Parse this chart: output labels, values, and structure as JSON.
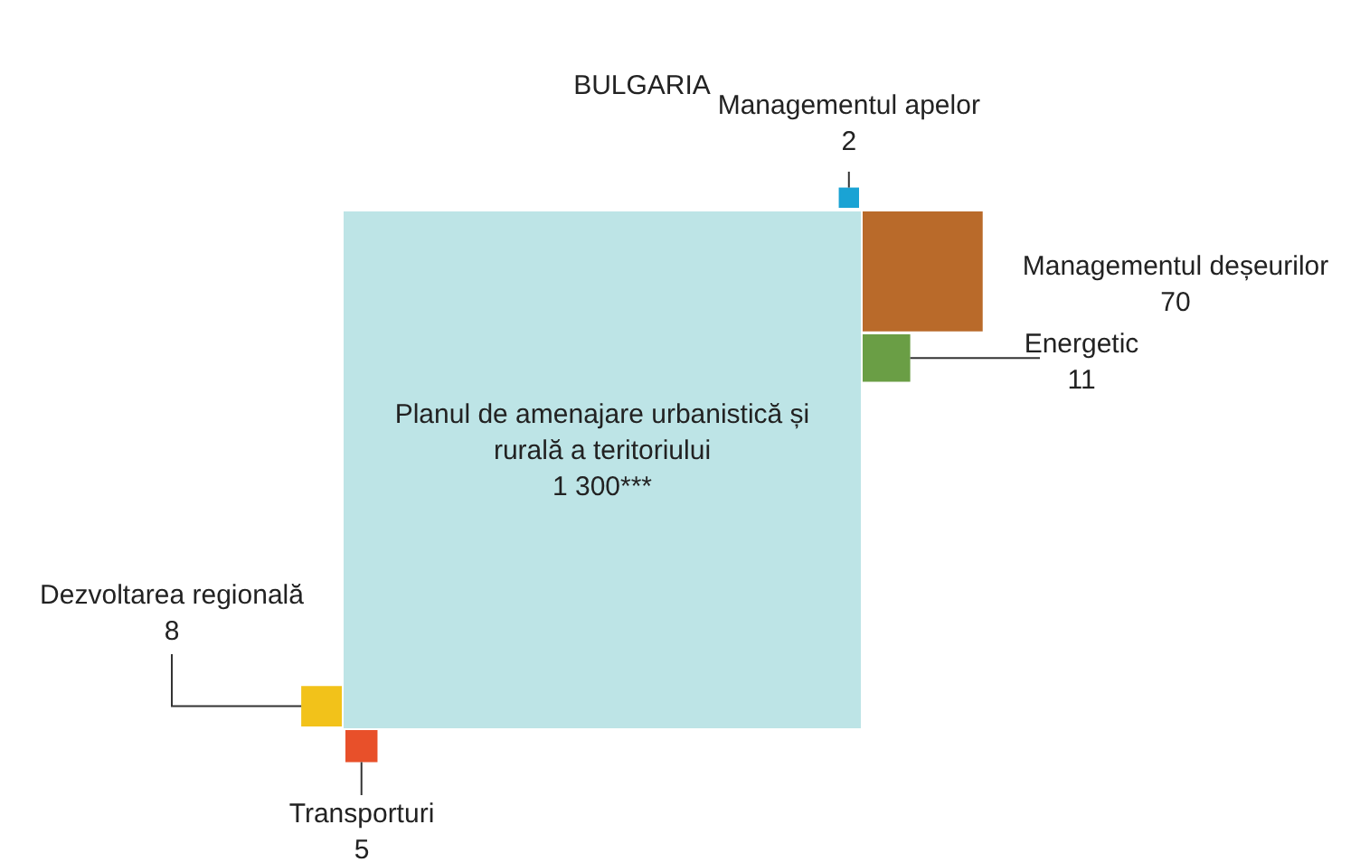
{
  "chart_data": {
    "type": "other",
    "title": "BULGARIA",
    "categories": [
      "Planul de amenajare urbanistică și rurală a teritoriului",
      "Managementul apelor",
      "Managementul deșeurilor",
      "Energetic",
      "Dezvoltarea regională",
      "Transporturi"
    ],
    "values": [
      1300,
      2,
      70,
      11,
      8,
      5
    ],
    "value_labels": [
      "1 300***",
      "2",
      "70",
      "11",
      "8",
      "5"
    ],
    "colors": [
      "#bde4e6",
      "#1aa3d4",
      "#b96a2a",
      "#6a9e45",
      "#f2c21a",
      "#e8502a"
    ]
  }
}
